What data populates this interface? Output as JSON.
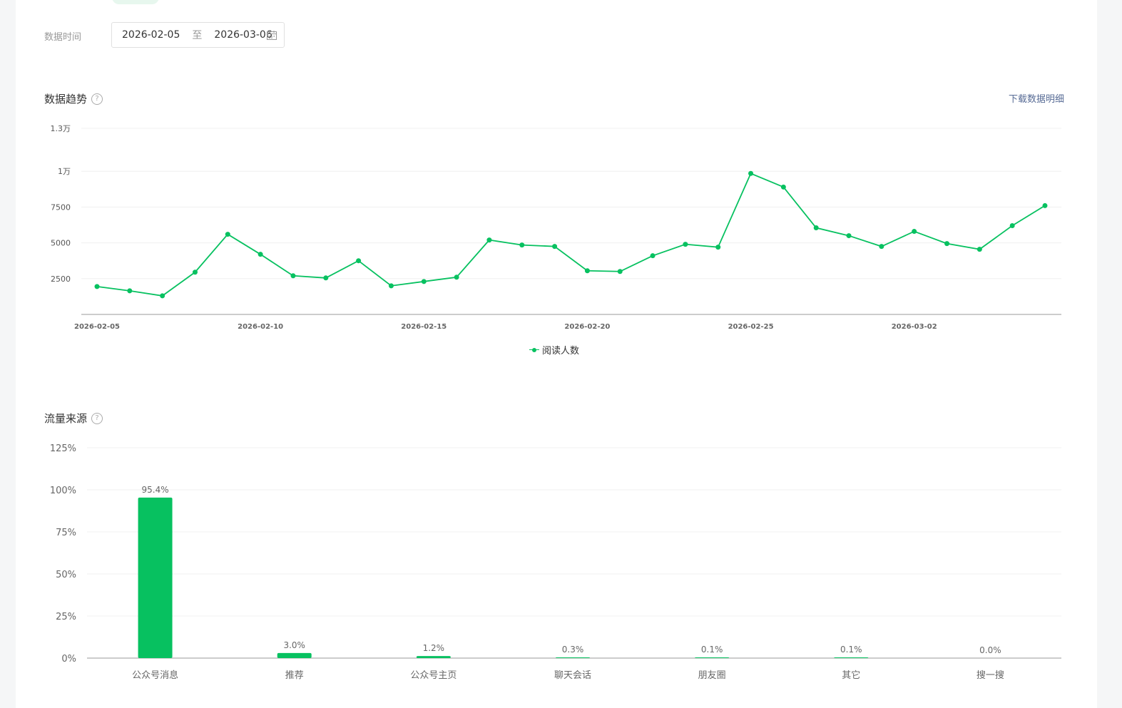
{
  "filter": {
    "label": "数据时间",
    "start_date": "2026-02-05",
    "separator": "至",
    "end_date": "2026-03-06"
  },
  "trend": {
    "title": "数据趋势",
    "help": "?",
    "download_label": "下载数据明细",
    "legend": "阅读人数"
  },
  "source": {
    "title": "流量来源",
    "help": "?"
  },
  "colors": {
    "accent": "#07c160",
    "link": "#576b95"
  },
  "chart_data": [
    {
      "type": "line",
      "title": "数据趋势",
      "y_ticks": [
        2500,
        5000,
        7500,
        10000,
        13000
      ],
      "y_tick_labels": [
        "2500",
        "5000",
        "7500",
        "1万",
        "1.3万"
      ],
      "ylim": [
        0,
        13000
      ],
      "x_tick_labels": [
        "2026-02-05",
        "2026-02-10",
        "2026-02-15",
        "2026-02-20",
        "2026-02-25",
        "2026-03-02"
      ],
      "x": [
        "2026-02-05",
        "2026-02-06",
        "2026-02-07",
        "2026-02-08",
        "2026-02-09",
        "2026-02-10",
        "2026-02-11",
        "2026-02-12",
        "2026-02-13",
        "2026-02-14",
        "2026-02-15",
        "2026-02-16",
        "2026-02-17",
        "2026-02-18",
        "2026-02-19",
        "2026-02-20",
        "2026-02-21",
        "2026-02-22",
        "2026-02-23",
        "2026-02-24",
        "2026-02-25",
        "2026-02-26",
        "2026-02-27",
        "2026-02-28",
        "2026-03-01",
        "2026-03-02",
        "2026-03-03",
        "2026-03-04",
        "2026-03-05",
        "2026-03-06"
      ],
      "series": [
        {
          "name": "阅读人数",
          "values": [
            1950,
            1650,
            1300,
            2950,
            5600,
            4200,
            2700,
            2550,
            3750,
            2000,
            2300,
            2600,
            5200,
            4850,
            4750,
            3050,
            3000,
            4100,
            4900,
            4700,
            9850,
            8900,
            6050,
            5500,
            4750,
            5800,
            4950,
            4550,
            6200,
            7600
          ]
        }
      ],
      "grid": true,
      "legend_position": "bottom-center"
    },
    {
      "type": "bar",
      "title": "流量来源",
      "categories": [
        "公众号消息",
        "推荐",
        "公众号主页",
        "聊天会话",
        "朋友圈",
        "其它",
        "搜一搜"
      ],
      "values": [
        95.4,
        3.0,
        1.2,
        0.3,
        0.1,
        0.1,
        0.0
      ],
      "value_labels": [
        "95.4%",
        "3.0%",
        "1.2%",
        "0.3%",
        "0.1%",
        "0.1%",
        "0.0%"
      ],
      "y_ticks": [
        0,
        25,
        50,
        75,
        100,
        125
      ],
      "y_tick_labels": [
        "0%",
        "25%",
        "50%",
        "75%",
        "100%",
        "125%"
      ],
      "ylim": [
        0,
        125
      ],
      "grid": true
    }
  ]
}
